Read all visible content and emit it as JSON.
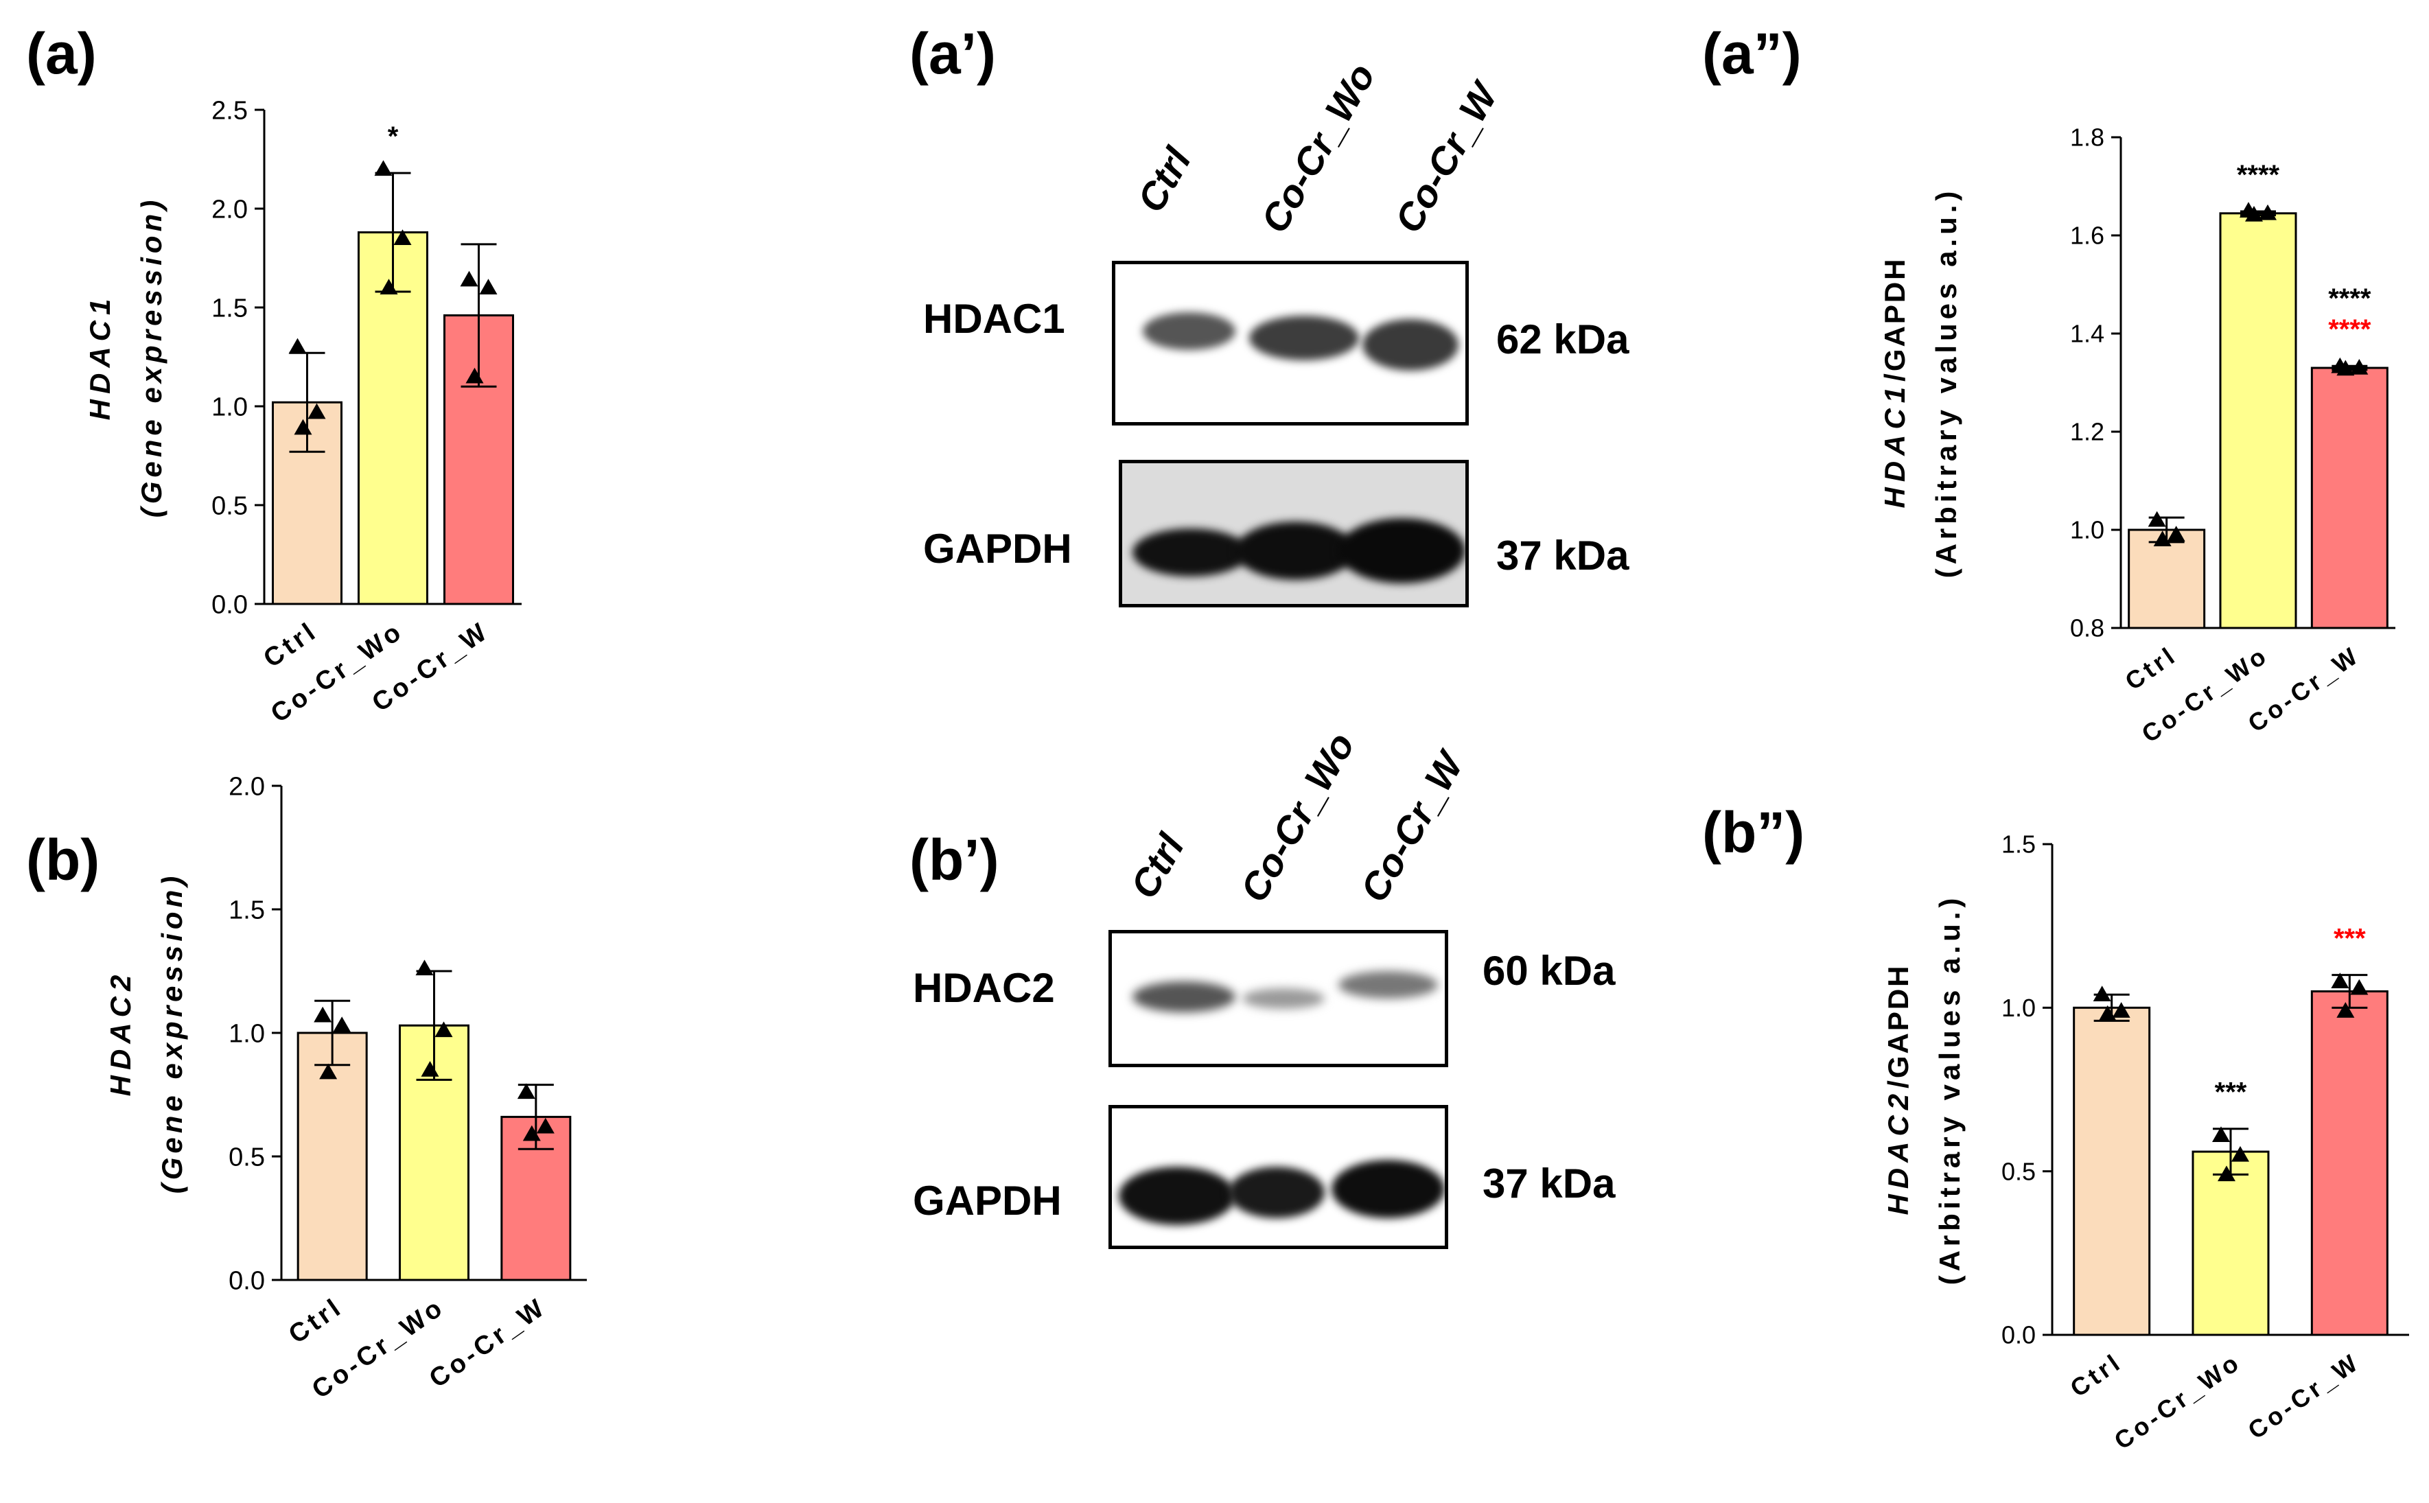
{
  "panels": {
    "a": "(a)",
    "b": "(b)",
    "a1": "(a’)",
    "b1": "(b’)",
    "a2": "(a”)",
    "b2": "(b”)"
  },
  "colors": {
    "ctrl": "#FBDCBB",
    "wo": "#FFFF8E",
    "w": "#FF7C7C",
    "star_black": "#000000",
    "star_red": "#FF0000"
  },
  "blots": {
    "a1": {
      "lanes": [
        "Ctrl",
        "Co-Cr_Wo",
        "Co-Cr_W"
      ],
      "rows": [
        {
          "protein": "HDAC1",
          "size": "62 kDa"
        },
        {
          "protein": "GAPDH",
          "size": "37 kDa"
        }
      ]
    },
    "b1": {
      "lanes": [
        "Ctrl",
        "Co-Cr_Wo",
        "Co-Cr_W"
      ],
      "rows": [
        {
          "protein": "HDAC2",
          "size": "60 kDa"
        },
        {
          "protein": "GAPDH",
          "size": "37 kDa"
        }
      ]
    }
  },
  "chart_data": [
    {
      "id": "a",
      "type": "bar",
      "categories": [
        "Ctrl",
        "Co-Cr_Wo",
        "Co-Cr_W"
      ],
      "values": [
        1.02,
        1.88,
        1.46
      ],
      "errors": [
        0.25,
        0.3,
        0.36
      ],
      "points": [
        [
          1.3,
          0.97,
          0.89
        ],
        [
          2.2,
          1.85,
          1.6
        ],
        [
          1.64,
          1.6,
          1.15
        ]
      ],
      "ylabel": "HDAC1",
      "ylabel2": "(Gene expression)",
      "ylim": [
        0,
        2.5
      ],
      "yticks": [
        "0.0",
        "0.5",
        "1.0",
        "1.5",
        "2.0",
        "2.5"
      ],
      "annotations": [
        {
          "category": 1,
          "text": "*",
          "color": "black"
        }
      ]
    },
    {
      "id": "b",
      "type": "bar",
      "categories": [
        "Ctrl",
        "Co-Cr_Wo",
        "Co-Cr_W"
      ],
      "values": [
        1.0,
        1.03,
        0.66
      ],
      "errors": [
        0.13,
        0.22,
        0.13
      ],
      "points": [
        [
          1.07,
          1.03,
          0.84
        ],
        [
          1.26,
          1.01,
          0.85
        ],
        [
          0.76,
          0.62,
          0.59
        ]
      ],
      "ylabel": "HDAC2",
      "ylabel2": "(Gene expression)",
      "ylim": [
        0,
        2.0
      ],
      "yticks": [
        "0.0",
        "0.5",
        "1.0",
        "1.5",
        "2.0"
      ],
      "annotations": []
    },
    {
      "id": "a2",
      "type": "bar",
      "categories": [
        "Ctrl",
        "Co-Cr_Wo",
        "Co-Cr_W"
      ],
      "values": [
        1.0,
        1.645,
        1.33
      ],
      "errors": [
        0.025,
        0.004,
        0.004
      ],
      "points": [
        [
          1.02,
          0.99,
          0.98
        ],
        [
          1.65,
          1.645,
          1.642
        ],
        [
          1.333,
          1.33,
          1.328
        ]
      ],
      "ylabel": "HDAC1",
      "ylabel_suffix": "/GAPDH",
      "ylabel2": "(Arbitrary values a.u.)",
      "ylim": [
        0.8,
        1.8
      ],
      "yticks": [
        "0.8",
        "1.0",
        "1.2",
        "1.4",
        "1.6",
        "1.8"
      ],
      "annotations": [
        {
          "category": 1,
          "text": "****",
          "color": "black",
          "level": 0
        },
        {
          "category": 2,
          "text": "****",
          "color": "black",
          "level": 1
        },
        {
          "category": 2,
          "text": "****",
          "color": "red",
          "level": 0
        }
      ]
    },
    {
      "id": "b2",
      "type": "bar",
      "categories": [
        "Ctrl",
        "Co-Cr_Wo",
        "Co-Cr_W"
      ],
      "values": [
        1.0,
        0.56,
        1.05
      ],
      "errors": [
        0.04,
        0.07,
        0.05
      ],
      "points": [
        [
          1.04,
          0.99,
          0.98
        ],
        [
          0.61,
          0.55,
          0.49
        ],
        [
          1.08,
          1.06,
          0.99
        ]
      ],
      "ylabel": "HDAC2",
      "ylabel_suffix": "/GAPDH",
      "ylabel2": "(Arbitrary values a.u.)",
      "ylim": [
        0,
        1.5
      ],
      "yticks": [
        "0.0",
        "0.5",
        "1.0",
        "1.5"
      ],
      "annotations": [
        {
          "category": 1,
          "text": "***",
          "color": "black",
          "level": 0
        },
        {
          "category": 2,
          "text": "***",
          "color": "red",
          "level": 0
        }
      ]
    }
  ]
}
